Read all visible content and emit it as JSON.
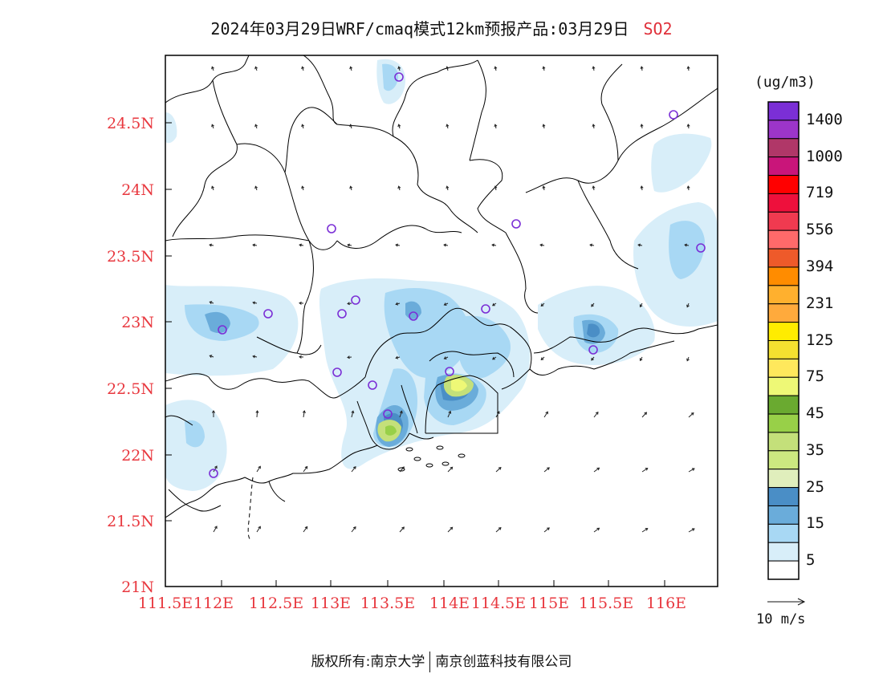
{
  "header": {
    "title": "2024年03月29日WRF/cmaq模式12km预报产品:03月29日",
    "pollutant": "SO2"
  },
  "axes": {
    "lat_labels": [
      "24.5N",
      "24N",
      "23.5N",
      "23N",
      "22.5N",
      "22N",
      "21.5N",
      "21N"
    ],
    "lon_labels": [
      "111.5E",
      "112E",
      "112.5E",
      "113E",
      "113.5E",
      "114E",
      "114.5E",
      "115E",
      "115.5E",
      "116E"
    ],
    "label_color": "#e8383f"
  },
  "colorbar": {
    "unit": "(ug/m3)",
    "labels": [
      "1400",
      "1000",
      "719",
      "556",
      "394",
      "231",
      "125",
      "75",
      "45",
      "35",
      "25",
      "15",
      "5"
    ],
    "colors_top_to_bottom": [
      "#7b2fd6",
      "#9c35c9",
      "#b03768",
      "#c9157a",
      "#ff0000",
      "#ee103c",
      "#f03a50",
      "#ff6a6a",
      "#ee5a2a",
      "#ff8c00",
      "#ffb02e",
      "#ffaa3c",
      "#ffec00",
      "#f4e030",
      "#ffe85c",
      "#eef876",
      "#6aaa30",
      "#98d048",
      "#c4e07a",
      "#cce880",
      "#e0eebc",
      "#4a8ec6",
      "#6aacda",
      "#a8d8f4",
      "#d8eef9",
      "#ffffff"
    ]
  },
  "wind_reference": {
    "label": "10 m/s"
  },
  "footer": {
    "copyright": "版权所有:南京大学",
    "company": "南京创蓝科技有限公司"
  },
  "stations_color": "#7b2fd6"
}
